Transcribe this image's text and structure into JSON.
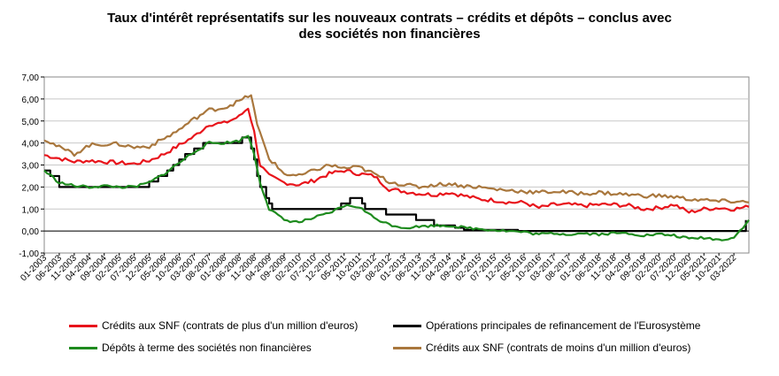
{
  "title_line1": "Taux d'intérêt représentatifs sur les nouveaux contrats – crédits et dépôts – conclus avec",
  "title_line2": "des sociétés non financières",
  "chart_data": {
    "type": "line",
    "title": "Taux d'intérêt représentatifs sur les nouveaux contrats – crédits et dépôts – conclus avec des sociétés non financières",
    "ylim": [
      -1,
      7
    ],
    "yticks": [
      "-1,00",
      "0,00",
      "1,00",
      "2,00",
      "3,00",
      "4,00",
      "5,00",
      "6,00",
      "7,00"
    ],
    "grid": true,
    "legend_position": "bottom",
    "x_start": "2003-01",
    "x_end": "2022-08",
    "xticks": [
      "01-2003",
      "06-2003",
      "11-2003",
      "04-2004",
      "09-2004",
      "02-2005",
      "07-2005",
      "12-2005",
      "05-2006",
      "10-2006",
      "03-2007",
      "08-2007",
      "01-2008",
      "06-2008",
      "11-2008",
      "04-2009",
      "09-2009",
      "02-2010",
      "07-2010",
      "12-2010",
      "05-2011",
      "10-2011",
      "03-2012",
      "08-2012",
      "01-2013",
      "06-2013",
      "11-2013",
      "04-2014",
      "09-2014",
      "02-2015",
      "07-2015",
      "12-2015",
      "05-2016",
      "10-2016",
      "03-2017",
      "08-2017",
      "01-2018",
      "06-2018",
      "11-2018",
      "04-2019",
      "09-2019",
      "02-2020",
      "07-2020",
      "12-2020",
      "05-2021",
      "10-2021",
      "03-2022"
    ],
    "series": [
      {
        "name": "Crédits aux SNF (contrats de plus d'un million d'euros)",
        "color": "#e8141b",
        "points": [
          [
            "2003-01",
            3.45
          ],
          [
            "2003-06",
            3.3
          ],
          [
            "2003-11",
            3.15
          ],
          [
            "2004-04",
            3.2
          ],
          [
            "2004-09",
            3.15
          ],
          [
            "2005-02",
            3.1
          ],
          [
            "2005-07",
            3.05
          ],
          [
            "2005-12",
            3.2
          ],
          [
            "2006-05",
            3.5
          ],
          [
            "2006-10",
            3.9
          ],
          [
            "2007-03",
            4.3
          ],
          [
            "2007-08",
            4.85
          ],
          [
            "2008-01",
            4.9
          ],
          [
            "2008-06",
            5.2
          ],
          [
            "2008-09",
            5.6
          ],
          [
            "2008-11",
            4.5
          ],
          [
            "2009-01",
            3.0
          ],
          [
            "2009-04",
            2.5
          ],
          [
            "2009-09",
            2.2
          ],
          [
            "2010-02",
            2.1
          ],
          [
            "2010-07",
            2.3
          ],
          [
            "2010-12",
            2.6
          ],
          [
            "2011-05",
            2.75
          ],
          [
            "2011-10",
            2.6
          ],
          [
            "2012-03",
            2.5
          ],
          [
            "2012-08",
            1.9
          ],
          [
            "2013-01",
            1.8
          ],
          [
            "2013-06",
            1.7
          ],
          [
            "2013-11",
            1.65
          ],
          [
            "2014-04",
            1.75
          ],
          [
            "2014-09",
            1.6
          ],
          [
            "2015-02",
            1.45
          ],
          [
            "2015-07",
            1.4
          ],
          [
            "2015-12",
            1.3
          ],
          [
            "2016-05",
            1.3
          ],
          [
            "2016-10",
            1.05
          ],
          [
            "2017-03",
            1.2
          ],
          [
            "2017-08",
            1.2
          ],
          [
            "2018-01",
            1.15
          ],
          [
            "2018-06",
            1.2
          ],
          [
            "2018-11",
            1.2
          ],
          [
            "2019-04",
            1.15
          ],
          [
            "2019-09",
            1.0
          ],
          [
            "2020-02",
            1.05
          ],
          [
            "2020-07",
            1.2
          ],
          [
            "2020-12",
            0.85
          ],
          [
            "2021-05",
            1.0
          ],
          [
            "2021-10",
            1.05
          ],
          [
            "2022-03",
            1.0
          ],
          [
            "2022-08",
            1.1
          ]
        ]
      },
      {
        "name": "Opérations principales de refinancement de l'Eurosystème",
        "color": "#000000",
        "points": [
          [
            "2003-01",
            2.75
          ],
          [
            "2003-03",
            2.5
          ],
          [
            "2003-06",
            2.0
          ],
          [
            "2005-11",
            2.0
          ],
          [
            "2005-12",
            2.25
          ],
          [
            "2006-03",
            2.5
          ],
          [
            "2006-06",
            2.75
          ],
          [
            "2006-08",
            3.0
          ],
          [
            "2006-10",
            3.25
          ],
          [
            "2006-12",
            3.5
          ],
          [
            "2007-03",
            3.75
          ],
          [
            "2007-06",
            4.0
          ],
          [
            "2008-07",
            4.25
          ],
          [
            "2008-10",
            3.75
          ],
          [
            "2008-11",
            3.25
          ],
          [
            "2008-12",
            2.5
          ],
          [
            "2009-01",
            2.0
          ],
          [
            "2009-03",
            1.5
          ],
          [
            "2009-04",
            1.25
          ],
          [
            "2009-05",
            1.0
          ],
          [
            "2011-04",
            1.25
          ],
          [
            "2011-07",
            1.5
          ],
          [
            "2011-11",
            1.25
          ],
          [
            "2011-12",
            1.0
          ],
          [
            "2012-07",
            0.75
          ],
          [
            "2013-05",
            0.5
          ],
          [
            "2013-11",
            0.25
          ],
          [
            "2014-06",
            0.15
          ],
          [
            "2014-09",
            0.05
          ],
          [
            "2016-03",
            0.0
          ],
          [
            "2022-07",
            0.5
          ]
        ]
      },
      {
        "name": "Dépôts à terme des sociétés non financières",
        "color": "#1e8b1e",
        "points": [
          [
            "2003-01",
            2.75
          ],
          [
            "2003-06",
            2.2
          ],
          [
            "2003-11",
            2.05
          ],
          [
            "2004-04",
            2.0
          ],
          [
            "2004-09",
            2.05
          ],
          [
            "2005-02",
            2.0
          ],
          [
            "2005-07",
            2.0
          ],
          [
            "2005-12",
            2.2
          ],
          [
            "2006-05",
            2.6
          ],
          [
            "2006-10",
            3.1
          ],
          [
            "2007-03",
            3.6
          ],
          [
            "2007-08",
            4.0
          ],
          [
            "2008-01",
            4.0
          ],
          [
            "2008-06",
            4.1
          ],
          [
            "2008-09",
            4.35
          ],
          [
            "2008-11",
            3.5
          ],
          [
            "2009-01",
            2.2
          ],
          [
            "2009-04",
            1.0
          ],
          [
            "2009-09",
            0.5
          ],
          [
            "2010-02",
            0.4
          ],
          [
            "2010-07",
            0.6
          ],
          [
            "2010-12",
            0.8
          ],
          [
            "2011-05",
            1.15
          ],
          [
            "2011-10",
            1.1
          ],
          [
            "2012-03",
            0.6
          ],
          [
            "2012-08",
            0.3
          ],
          [
            "2013-01",
            0.15
          ],
          [
            "2013-06",
            0.2
          ],
          [
            "2013-11",
            0.25
          ],
          [
            "2014-04",
            0.25
          ],
          [
            "2014-09",
            0.15
          ],
          [
            "2015-02",
            0.1
          ],
          [
            "2015-07",
            0.05
          ],
          [
            "2015-12",
            0.0
          ],
          [
            "2016-05",
            -0.05
          ],
          [
            "2016-10",
            -0.15
          ],
          [
            "2017-03",
            -0.1
          ],
          [
            "2017-08",
            -0.15
          ],
          [
            "2018-01",
            -0.1
          ],
          [
            "2018-06",
            -0.15
          ],
          [
            "2018-11",
            -0.1
          ],
          [
            "2019-04",
            -0.1
          ],
          [
            "2019-09",
            -0.2
          ],
          [
            "2020-02",
            -0.15
          ],
          [
            "2020-07",
            -0.2
          ],
          [
            "2020-12",
            -0.35
          ],
          [
            "2021-05",
            -0.3
          ],
          [
            "2021-10",
            -0.4
          ],
          [
            "2022-03",
            -0.3
          ],
          [
            "2022-08",
            0.5
          ]
        ]
      },
      {
        "name": "Crédits aux SNF (contrats de moins d'un million d'euros)",
        "color": "#a9773d",
        "points": [
          [
            "2003-01",
            4.2
          ],
          [
            "2003-06",
            3.8
          ],
          [
            "2003-11",
            3.5
          ],
          [
            "2004-04",
            3.9
          ],
          [
            "2004-09",
            3.95
          ],
          [
            "2005-02",
            3.95
          ],
          [
            "2005-07",
            3.8
          ],
          [
            "2005-12",
            3.85
          ],
          [
            "2006-05",
            4.2
          ],
          [
            "2006-10",
            4.6
          ],
          [
            "2007-03",
            5.1
          ],
          [
            "2007-08",
            5.5
          ],
          [
            "2008-01",
            5.6
          ],
          [
            "2008-06",
            5.9
          ],
          [
            "2008-10",
            6.2
          ],
          [
            "2008-12",
            4.8
          ],
          [
            "2009-04",
            3.3
          ],
          [
            "2009-09",
            2.6
          ],
          [
            "2010-02",
            2.5
          ],
          [
            "2010-07",
            2.75
          ],
          [
            "2010-12",
            3.0
          ],
          [
            "2011-05",
            2.85
          ],
          [
            "2011-10",
            2.9
          ],
          [
            "2012-03",
            2.6
          ],
          [
            "2012-08",
            2.25
          ],
          [
            "2013-01",
            2.1
          ],
          [
            "2013-06",
            2.0
          ],
          [
            "2013-11",
            2.1
          ],
          [
            "2014-04",
            2.15
          ],
          [
            "2014-09",
            2.05
          ],
          [
            "2015-02",
            2.0
          ],
          [
            "2015-07",
            1.9
          ],
          [
            "2015-12",
            1.85
          ],
          [
            "2016-05",
            1.8
          ],
          [
            "2016-10",
            1.75
          ],
          [
            "2017-03",
            1.8
          ],
          [
            "2017-08",
            1.75
          ],
          [
            "2018-01",
            1.7
          ],
          [
            "2018-06",
            1.75
          ],
          [
            "2018-11",
            1.7
          ],
          [
            "2019-04",
            1.65
          ],
          [
            "2019-09",
            1.6
          ],
          [
            "2020-02",
            1.6
          ],
          [
            "2020-07",
            1.55
          ],
          [
            "2020-12",
            1.45
          ],
          [
            "2021-05",
            1.4
          ],
          [
            "2021-10",
            1.35
          ],
          [
            "2022-03",
            1.35
          ],
          [
            "2022-08",
            1.3
          ]
        ]
      }
    ]
  },
  "legend": [
    {
      "label": "Crédits aux SNF (contrats de plus d'un million d'euros)",
      "color": "#e8141b"
    },
    {
      "label": "Opérations principales de refinancement de l'Eurosystème",
      "color": "#000000"
    },
    {
      "label": "Dépôts à terme des sociétés non financières",
      "color": "#1e8b1e"
    },
    {
      "label": "Crédits aux SNF (contrats de moins d'un million d'euros)",
      "color": "#a9773d"
    }
  ]
}
